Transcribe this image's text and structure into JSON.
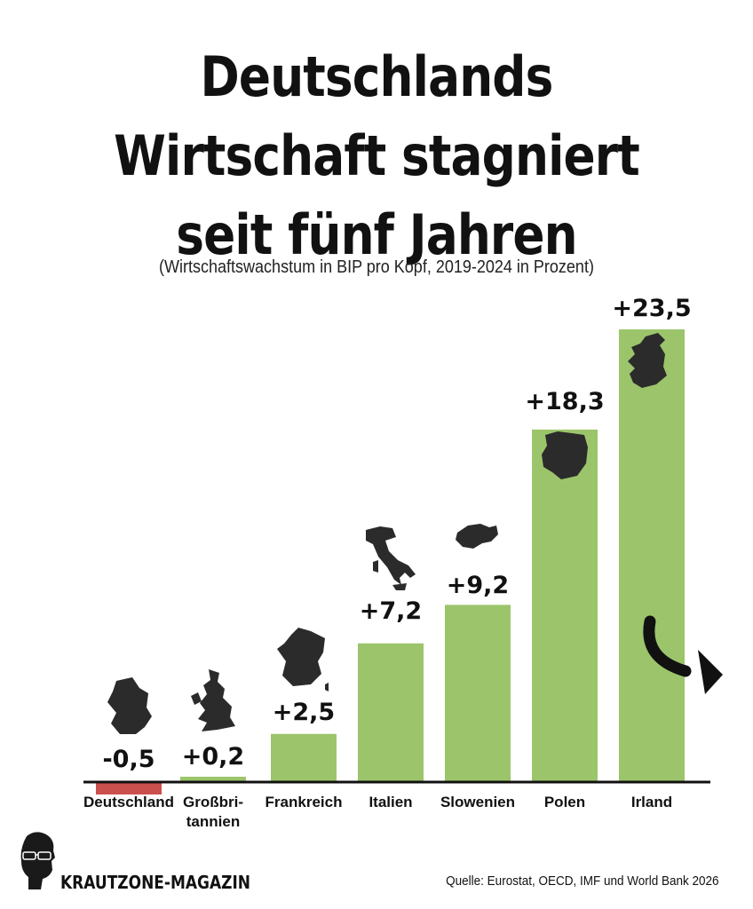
{
  "header": {
    "title_lines": [
      "Deutschlands",
      "Wirtschaft stagniert",
      "seit fünf Jahren"
    ],
    "subtitle": "(Wirtschaftswachstum in BIP pro Kopf, 2019-2024 in Prozent)"
  },
  "chart_data": {
    "type": "bar",
    "title": "Deutschlands Wirtschaft stagniert seit fünf Jahren",
    "subtitle": "(Wirtschaftswachstum in BIP pro Kopf, 2019-2024 in Prozent)",
    "categories": [
      [
        "Deutschland"
      ],
      [
        "Großbri-",
        "tannien"
      ],
      [
        "Frankreich"
      ],
      [
        "Italien"
      ],
      [
        "Slowenien"
      ],
      [
        "Polen"
      ],
      [
        "Irland"
      ]
    ],
    "values": [
      -0.5,
      0.2,
      2.5,
      7.2,
      9.2,
      18.3,
      23.5
    ],
    "value_labels": [
      "-0,5",
      "+0,2",
      "+2,5",
      "+7,2",
      "+9,2",
      "+18,3",
      "+23,5"
    ],
    "icons": [
      "germany-map-icon",
      "uk-map-icon",
      "france-map-icon",
      "italy-map-icon",
      "slovenia-map-icon",
      "poland-map-icon",
      "ireland-map-icon"
    ],
    "colors": {
      "positive": "#9cc56b",
      "negative": "#c9504d",
      "axis": "#111111",
      "icon": "#2b2b2b"
    },
    "ylim": [
      -0.5,
      23.5
    ],
    "annotation": "arrow-curved-right-icon"
  },
  "footer": {
    "brand": "KRAUTZONE-MAGAZIN",
    "source": "Quelle: Eurostat, OECD, IMF und World Bank 2026"
  }
}
